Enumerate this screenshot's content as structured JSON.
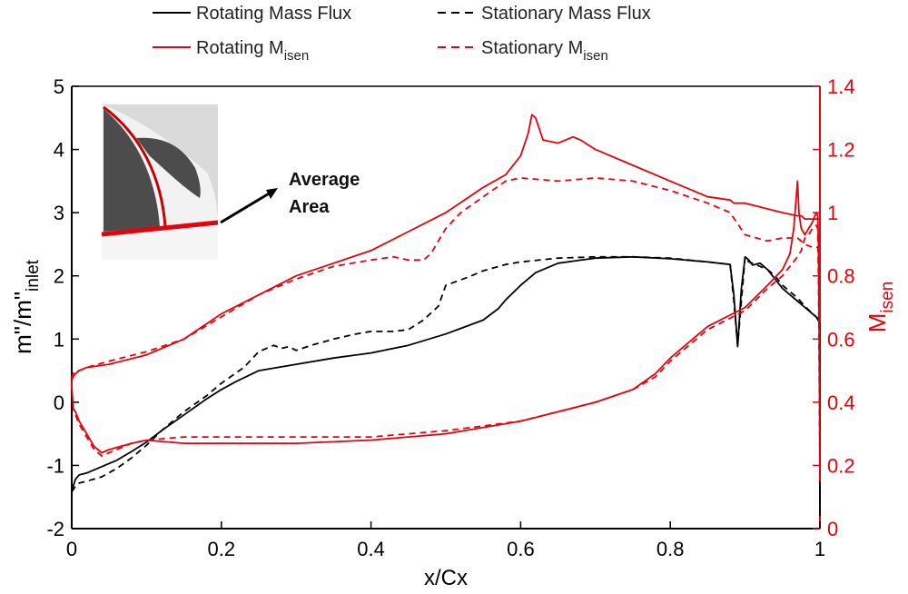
{
  "chart_data": {
    "type": "line",
    "xlabel": "x/Cx",
    "ylabel_left": {
      "base": "m\"/m\"",
      "sub": "inlet"
    },
    "ylabel_right": {
      "base": "M",
      "sub": "isen"
    },
    "xlim": [
      0,
      1
    ],
    "ylim_left": [
      -2,
      5
    ],
    "ylim_right": [
      0,
      1.4
    ],
    "xticks": [
      "0",
      "0.2",
      "0.4",
      "0.6",
      "0.8",
      "1"
    ],
    "yticks_left": [
      "-2",
      "-1",
      "0",
      "1",
      "2",
      "3",
      "4",
      "5"
    ],
    "yticks_right": [
      "0",
      "0.2",
      "0.4",
      "0.6",
      "0.8",
      "1",
      "1.2",
      "1.4"
    ],
    "grid": false,
    "legend_placement": "top, outside plot",
    "legend": [
      {
        "base": "Rotating Mass Flux",
        "sub": ""
      },
      {
        "base": "Stationary Mass Flux",
        "sub": ""
      },
      {
        "base": "Rotating M",
        "sub": "isen"
      },
      {
        "base": "Stationary M",
        "sub": "isen"
      }
    ],
    "inset_label": [
      "Average",
      "Area"
    ],
    "colors": {
      "mass_flux": "#000000",
      "isen": "#e8000b"
    },
    "series": [
      {
        "name": "Rotating Mass Flux",
        "axis": "left",
        "style": "solid",
        "color": "#000000",
        "x": [
          0,
          0.005,
          0.01,
          0.02,
          0.04,
          0.06,
          0.08,
          0.1,
          0.12,
          0.15,
          0.18,
          0.2,
          0.22,
          0.25,
          0.3,
          0.35,
          0.4,
          0.45,
          0.5,
          0.55,
          0.57,
          0.58,
          0.6,
          0.62,
          0.65,
          0.7,
          0.75,
          0.8,
          0.85,
          0.88,
          0.885,
          0.89,
          0.895,
          0.9,
          0.905,
          0.91,
          0.92,
          0.93,
          0.94,
          0.95,
          0.96,
          0.97,
          0.98,
          0.99,
          0.995,
          1,
          1
        ],
        "y": [
          -1.4,
          -1.22,
          -1.15,
          -1.12,
          -1.02,
          -0.92,
          -0.78,
          -0.63,
          -0.45,
          -0.2,
          0.05,
          0.2,
          0.33,
          0.5,
          0.6,
          0.7,
          0.78,
          0.9,
          1.08,
          1.3,
          1.48,
          1.62,
          1.85,
          2.05,
          2.2,
          2.28,
          2.3,
          2.27,
          2.22,
          2.18,
          1.7,
          0.88,
          1.8,
          2.3,
          2.25,
          2.17,
          2.2,
          2.1,
          1.95,
          1.8,
          1.7,
          1.6,
          1.5,
          1.4,
          1.35,
          1.25,
          -1.8
        ]
      },
      {
        "name": "Stationary Mass Flux",
        "axis": "left",
        "style": "dashed",
        "color": "#000000",
        "x": [
          0,
          0.005,
          0.01,
          0.02,
          0.04,
          0.06,
          0.08,
          0.1,
          0.12,
          0.15,
          0.18,
          0.2,
          0.23,
          0.25,
          0.27,
          0.28,
          0.29,
          0.3,
          0.32,
          0.35,
          0.38,
          0.4,
          0.43,
          0.45,
          0.47,
          0.49,
          0.5,
          0.53,
          0.55,
          0.58,
          0.6,
          0.65,
          0.7,
          0.75,
          0.8,
          0.85,
          0.88,
          0.885,
          0.89,
          0.895,
          0.9,
          0.905,
          0.91,
          0.92,
          0.93,
          0.94,
          0.95,
          0.96,
          0.97,
          0.98,
          0.99,
          1,
          1
        ],
        "y": [
          -1.42,
          -1.33,
          -1.28,
          -1.25,
          -1.18,
          -1.05,
          -0.88,
          -0.68,
          -0.45,
          -0.15,
          0.1,
          0.3,
          0.55,
          0.8,
          0.9,
          0.85,
          0.88,
          0.82,
          0.9,
          1.0,
          1.08,
          1.12,
          1.12,
          1.15,
          1.3,
          1.52,
          1.85,
          1.98,
          2.08,
          2.18,
          2.22,
          2.28,
          2.3,
          2.3,
          2.28,
          2.22,
          2.18,
          1.6,
          0.9,
          1.6,
          2.3,
          2.22,
          2.2,
          2.15,
          2.1,
          2.0,
          1.85,
          1.75,
          1.65,
          1.52,
          1.4,
          1.3,
          -1.8
        ]
      },
      {
        "name": "Rotating M isen",
        "axis": "right",
        "style": "solid",
        "color": "#e8000b",
        "x": [
          1,
          0.999,
          0.998,
          0.997,
          0.995,
          0.99,
          0.985,
          0.98,
          0.975,
          0.972,
          0.97,
          0.965,
          0.96,
          0.95,
          0.93,
          0.9,
          0.85,
          0.8,
          0.78,
          0.75,
          0.7,
          0.6,
          0.5,
          0.4,
          0.3,
          0.2,
          0.15,
          0.1,
          0.08,
          0.05,
          0.04,
          0.03,
          0.02,
          0.01,
          0.005,
          0.002,
          0,
          0,
          0.002,
          0.005,
          0.01,
          0.02,
          0.05,
          0.1,
          0.15,
          0.2,
          0.3,
          0.35,
          0.4,
          0.45,
          0.5,
          0.55,
          0.58,
          0.6,
          0.61,
          0.615,
          0.62,
          0.63,
          0.65,
          0.67,
          0.68,
          0.7,
          0.75,
          0.8,
          0.85,
          0.88,
          0.885,
          0.9,
          0.95,
          0.97,
          0.975,
          0.98,
          0.99,
          1
        ],
        "y": [
          0.15,
          0.6,
          0.9,
          0.99,
          1.0,
          0.97,
          0.95,
          0.93,
          0.95,
          1.0,
          1.1,
          0.95,
          0.87,
          0.82,
          0.77,
          0.7,
          0.64,
          0.54,
          0.49,
          0.44,
          0.4,
          0.34,
          0.3,
          0.28,
          0.27,
          0.27,
          0.27,
          0.28,
          0.27,
          0.25,
          0.24,
          0.26,
          0.3,
          0.34,
          0.37,
          0.38,
          0.45,
          0.47,
          0.48,
          0.49,
          0.5,
          0.51,
          0.52,
          0.55,
          0.6,
          0.68,
          0.8,
          0.84,
          0.88,
          0.94,
          1.0,
          1.08,
          1.12,
          1.18,
          1.25,
          1.31,
          1.3,
          1.23,
          1.22,
          1.24,
          1.23,
          1.2,
          1.15,
          1.1,
          1.05,
          1.04,
          1.03,
          1.03,
          1.0,
          0.99,
          0.99,
          0.98,
          0.98,
          0.98
        ]
      },
      {
        "name": "Stationary M isen",
        "axis": "right",
        "style": "dashed",
        "color": "#e8000b",
        "x": [
          1,
          0.999,
          0.998,
          0.997,
          0.995,
          0.99,
          0.985,
          0.98,
          0.975,
          0.97,
          0.96,
          0.95,
          0.93,
          0.9,
          0.85,
          0.8,
          0.78,
          0.75,
          0.7,
          0.6,
          0.5,
          0.4,
          0.3,
          0.2,
          0.15,
          0.1,
          0.08,
          0.05,
          0.04,
          0.03,
          0.02,
          0.01,
          0.005,
          0.002,
          0,
          0,
          0.002,
          0.005,
          0.01,
          0.02,
          0.05,
          0.1,
          0.15,
          0.2,
          0.25,
          0.3,
          0.35,
          0.4,
          0.43,
          0.45,
          0.47,
          0.48,
          0.5,
          0.52,
          0.55,
          0.58,
          0.6,
          0.65,
          0.7,
          0.75,
          0.8,
          0.85,
          0.88,
          0.9,
          0.93,
          0.95,
          0.97,
          0.98,
          0.99,
          1
        ],
        "y": [
          0.15,
          0.5,
          0.8,
          0.95,
          0.96,
          0.95,
          0.93,
          0.92,
          0.88,
          0.86,
          0.83,
          0.8,
          0.76,
          0.69,
          0.63,
          0.53,
          0.48,
          0.44,
          0.4,
          0.34,
          0.31,
          0.29,
          0.29,
          0.29,
          0.29,
          0.28,
          0.27,
          0.24,
          0.23,
          0.25,
          0.29,
          0.33,
          0.36,
          0.38,
          0.45,
          0.48,
          0.49,
          0.5,
          0.5,
          0.51,
          0.53,
          0.56,
          0.6,
          0.67,
          0.74,
          0.79,
          0.83,
          0.85,
          0.86,
          0.85,
          0.85,
          0.87,
          0.95,
          1.0,
          1.05,
          1.1,
          1.11,
          1.1,
          1.11,
          1.1,
          1.07,
          1.03,
          1.0,
          0.93,
          0.91,
          0.92,
          0.92,
          0.9,
          0.89,
          0.89
        ]
      }
    ]
  }
}
